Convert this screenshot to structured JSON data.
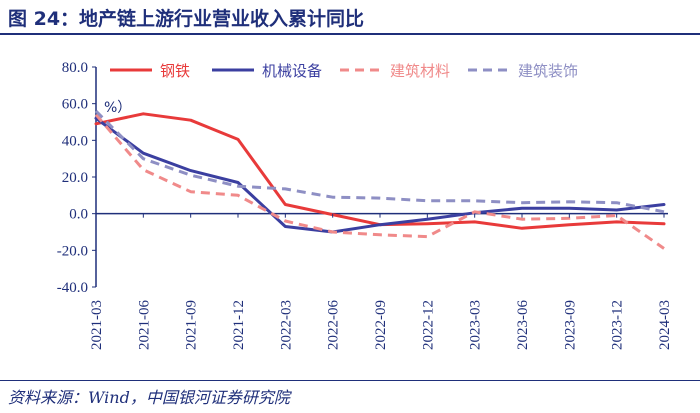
{
  "header": {
    "title": "图 24：地产链上游行业营业收入累计同比"
  },
  "footer": {
    "source": "资料来源：Wind，中国银河证券研究院"
  },
  "chart_data": {
    "type": "line",
    "title": "图 24：地产链上游行业营业收入累计同比",
    "unit_label": "%）",
    "ylabel": "%",
    "xlabel": "",
    "ylim": [
      -40,
      80
    ],
    "yticks": [
      80,
      60,
      40,
      20,
      0,
      -20,
      -40
    ],
    "ytick_labels": [
      "80.0",
      "60.0",
      "40.0",
      "20.0",
      "0.0",
      "-20.0",
      "-40.0"
    ],
    "categories": [
      "2021-03",
      "2021-06",
      "2021-09",
      "2021-12",
      "2022-03",
      "2022-06",
      "2022-09",
      "2022-12",
      "2023-03",
      "2023-06",
      "2023-09",
      "2023-12",
      "2024-03"
    ],
    "legend_position": "top",
    "series": [
      {
        "name": "钢铁",
        "color": "#e83a3a",
        "style": "solid",
        "values": [
          49,
          54.5,
          51,
          40.5,
          5,
          -0.5,
          -6,
          -5.5,
          -4.5,
          -8,
          -6,
          -4.5,
          -5.5
        ]
      },
      {
        "name": "机械设备",
        "color": "#3b3fa0",
        "style": "solid",
        "values": [
          52,
          33,
          23.5,
          17,
          -7,
          -10,
          -6,
          -3,
          0.5,
          3,
          3,
          2,
          5
        ]
      },
      {
        "name": "建筑材料",
        "color": "#f08a8a",
        "style": "dashed",
        "values": [
          54,
          24,
          12,
          10,
          -4,
          -10,
          -11.5,
          -12.5,
          1,
          -3,
          -2.5,
          -1,
          -19
        ]
      },
      {
        "name": "建筑装饰",
        "color": "#8e8fc4",
        "style": "dashed",
        "values": [
          56,
          30,
          21,
          15,
          13.5,
          9,
          8.5,
          7,
          7,
          6,
          6.5,
          6,
          1
        ]
      }
    ]
  }
}
